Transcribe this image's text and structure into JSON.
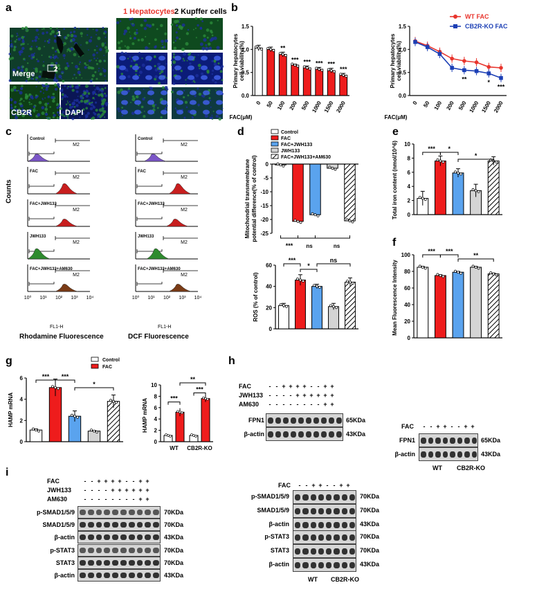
{
  "panel_letters": [
    "a",
    "b",
    "c",
    "d",
    "e",
    "f",
    "g",
    "h",
    "i"
  ],
  "colors": {
    "white": "#ffffff",
    "red": "#ee1c1c",
    "blue": "#5aa3ee",
    "gray": "#d4d4d4",
    "hatch": "#000000",
    "wt": "#e8352d",
    "ko": "#1c3fb5",
    "green": "#1e9e2a",
    "flow_purple": "#7b56c7",
    "flow_red": "#c81e1e",
    "flow_green": "#2e8b2e",
    "flow_brown": "#7a3b16"
  },
  "panel_a": {
    "merge": "Merge",
    "cb2r": "CB2R",
    "dapi": "DAPI",
    "hep": "1 Hepatocytes",
    "kup": "2 Kupffer cells",
    "roi1": "1",
    "roi2": "2"
  },
  "panel_c": {
    "ylabel": "Counts",
    "xlabel1": "Rhodamine Fluorescence",
    "xlabel2": "DCF Fluorescence",
    "axis": "FL1-H",
    "gate": "M2",
    "gate1": "M1",
    "rows": [
      "Control",
      "FAC",
      "FAC+JWH133",
      "JWH133",
      "FAC+JWH133+AM630"
    ],
    "ticks": [
      "10⁰",
      "10¹",
      "10²",
      "10³",
      "10⁴"
    ]
  },
  "legend_d": [
    "Control",
    "FAC",
    "FAC+JWH133",
    "JWH133",
    "FAC+JWH133+AM630"
  ],
  "legend_g": [
    "Control",
    "FAC"
  ],
  "blots_h": {
    "rows_left": [
      "FAC",
      "JWH133",
      "AM630"
    ],
    "signs_left": [
      [
        "-",
        "-",
        "+",
        "+",
        "+",
        "+",
        "-",
        "-",
        "+",
        "+"
      ],
      [
        "-",
        "-",
        "-",
        "-",
        "+",
        "+",
        "+",
        "+",
        "+",
        "+"
      ],
      [
        "-",
        "-",
        "-",
        "-",
        "-",
        "-",
        "-",
        "-",
        "+",
        "+"
      ]
    ],
    "proteins_left": [
      "FPN1",
      "β-actin"
    ],
    "kda_left": [
      "65KDa",
      "43KDa"
    ],
    "signs_right": [
      "-",
      "-",
      "+",
      "+",
      "-",
      "-",
      "+",
      "+"
    ],
    "proteins_right": [
      "FPN1",
      "β-actin"
    ],
    "kda_right": [
      "65KDa",
      "43KDa"
    ],
    "group_wt": "WT",
    "group_ko": "CB2R-KO",
    "fac": "FAC"
  },
  "blots_i": {
    "rows_left": [
      "FAC",
      "JWH133",
      "AM630"
    ],
    "signs_left": [
      [
        "-",
        "-",
        "+",
        "+",
        "+",
        "+",
        "-",
        "-",
        "+",
        "+"
      ],
      [
        "-",
        "-",
        "-",
        "-",
        "+",
        "+",
        "+",
        "+",
        "+",
        "+"
      ],
      [
        "-",
        "-",
        "-",
        "-",
        "-",
        "-",
        "-",
        "-",
        "+",
        "+"
      ]
    ],
    "proteins_left": [
      "p-SMAD1/5/9",
      "SMAD1/5/9",
      "β-actin",
      "p-STAT3",
      "STAT3",
      "β-actin"
    ],
    "kda_left": [
      "70KDa",
      "70KDa",
      "43KDa",
      "70KDa",
      "70KDa",
      "43KDa"
    ],
    "signs_right": [
      "-",
      "-",
      "+",
      "+",
      "-",
      "-",
      "+",
      "+"
    ],
    "proteins_right": [
      "p-SMAD1/5/9",
      "SMAD1/5/9",
      "β-actin",
      "p-STAT3",
      "STAT3",
      "β-actin"
    ],
    "kda_right": [
      "70KDa",
      "70KDa",
      "43KDa",
      "70KDa",
      "70KDa",
      "43KDa"
    ],
    "group_wt": "WT",
    "group_ko": "CB2R-KO",
    "fac": "FAC"
  },
  "chart_data": [
    {
      "id": "b1",
      "type": "bar",
      "categories": [
        "0",
        "50",
        "100",
        "200",
        "500",
        "1000",
        "1500",
        "2000"
      ],
      "values": [
        1.03,
        1.0,
        0.89,
        0.66,
        0.6,
        0.57,
        0.54,
        0.44
      ],
      "errors": [
        0.06,
        0.05,
        0.05,
        0.02,
        0.04,
        0.04,
        0.05,
        0.04
      ],
      "sig": [
        "",
        "",
        "**",
        "***",
        "***",
        "***",
        "***",
        "***"
      ],
      "ylabel": "Primary hepatocytes cell viability(%)",
      "xlabel": "FAC(μM)",
      "ylim": [
        0,
        1.5
      ],
      "yticks": [
        "0.0",
        "0.5",
        "1.0",
        "1.5"
      ]
    },
    {
      "id": "b2",
      "type": "line",
      "categories": [
        "0",
        "50",
        "100",
        "200",
        "500",
        "1000",
        "1500",
        "2000"
      ],
      "series": [
        {
          "name": "WT FAC",
          "values": [
            1.18,
            1.08,
            0.95,
            0.8,
            0.75,
            0.72,
            0.62,
            0.6
          ]
        },
        {
          "name": "CB2R-KO FAC",
          "values": [
            1.16,
            1.05,
            0.9,
            0.6,
            0.55,
            0.53,
            0.48,
            0.38
          ]
        }
      ],
      "sig": [
        "",
        "",
        "",
        "",
        "**",
        "",
        "*",
        "***"
      ],
      "ylabel": "Primary hepatocytes cell viability(%)",
      "xlabel": "FAC(μM)",
      "ylim": [
        0,
        1.5
      ],
      "yticks": [
        "0.0",
        "0.5",
        "1.0",
        "1.5"
      ]
    },
    {
      "id": "d1",
      "type": "bar",
      "categories": [
        "Control",
        "FAC",
        "FAC+JWH133",
        "JWH133",
        "FAC+JWH133+AM630"
      ],
      "values": [
        -0.3,
        -20.7,
        -18.3,
        -1.5,
        -20.5
      ],
      "ylabel": "Mitochondrial transmembrane potential difference(% of control)",
      "ylim": [
        -25,
        0
      ],
      "yticks": [
        "0",
        "-5",
        "-10",
        "-15",
        "-20",
        "-25"
      ],
      "sig": [
        "***",
        "ns",
        "ns"
      ]
    },
    {
      "id": "d2",
      "type": "bar",
      "categories": [
        "Control",
        "FAC",
        "FAC+JWH133",
        "JWH133",
        "FAC+JWH133+AM630"
      ],
      "values": [
        22,
        46,
        40,
        21,
        44
      ],
      "errors": [
        2,
        5,
        2,
        3,
        4
      ],
      "ylabel": "ROS (% of control)",
      "ylim": [
        0,
        60
      ],
      "yticks": [
        "0",
        "20",
        "40",
        "60"
      ],
      "sig": [
        "***",
        "*",
        "ns"
      ]
    },
    {
      "id": "e",
      "type": "bar",
      "categories": [
        "Control",
        "FAC",
        "FAC+JWH133",
        "JWH133",
        "FAC+JWH133+AM630"
      ],
      "values": [
        2.3,
        7.6,
        5.9,
        3.4,
        7.6
      ],
      "errors": [
        1.0,
        0.7,
        0.6,
        0.9,
        0.6
      ],
      "ylabel": "Total iron content (nmol/10^6)",
      "ylim": [
        0,
        10
      ],
      "yticks": [
        "0",
        "2",
        "4",
        "6",
        "8",
        "10"
      ],
      "sig": [
        "***",
        "*",
        "*"
      ]
    },
    {
      "id": "f",
      "type": "bar",
      "categories": [
        "Control",
        "FAC",
        "FAC+JWH133",
        "JWH133",
        "FAC+JWH133+AM630"
      ],
      "values": [
        85,
        75,
        79,
        85,
        77
      ],
      "errors": [
        1,
        1,
        1,
        1,
        1
      ],
      "ylabel": "Mean Fluorescence Intensity",
      "ylim": [
        0,
        100
      ],
      "yticks": [
        "0",
        "20",
        "40",
        "60",
        "80",
        "100"
      ],
      "sig": [
        "***",
        "***",
        "**"
      ]
    },
    {
      "id": "g1",
      "type": "bar",
      "categories": [
        "Control",
        "FAC",
        "FAC+JWH133",
        "JWH133",
        "FAC+JWH133+AM630"
      ],
      "values": [
        1.1,
        5.1,
        2.4,
        1.0,
        3.8
      ],
      "errors": [
        0.1,
        0.8,
        0.5,
        0.05,
        0.6
      ],
      "ylabel": "HAMP mRNA",
      "ylim": [
        0,
        6
      ],
      "yticks": [
        "0",
        "2",
        "4",
        "6"
      ],
      "sig": [
        "***",
        "***",
        "*"
      ]
    },
    {
      "id": "g2",
      "type": "bar",
      "categories": [
        "WT",
        "CB2R-KO"
      ],
      "series": [
        {
          "name": "Control",
          "values": [
            1.1,
            1.1
          ]
        },
        {
          "name": "FAC",
          "values": [
            5.2,
            7.6
          ]
        }
      ],
      "errors": [
        0.1,
        0.7,
        0.1,
        0.6
      ],
      "ylabel": "HAMP mRNA",
      "ylim": [
        0,
        10
      ],
      "yticks": [
        "0",
        "2",
        "4",
        "6",
        "8",
        "10"
      ],
      "sig": [
        "***",
        "***",
        "**"
      ]
    }
  ]
}
